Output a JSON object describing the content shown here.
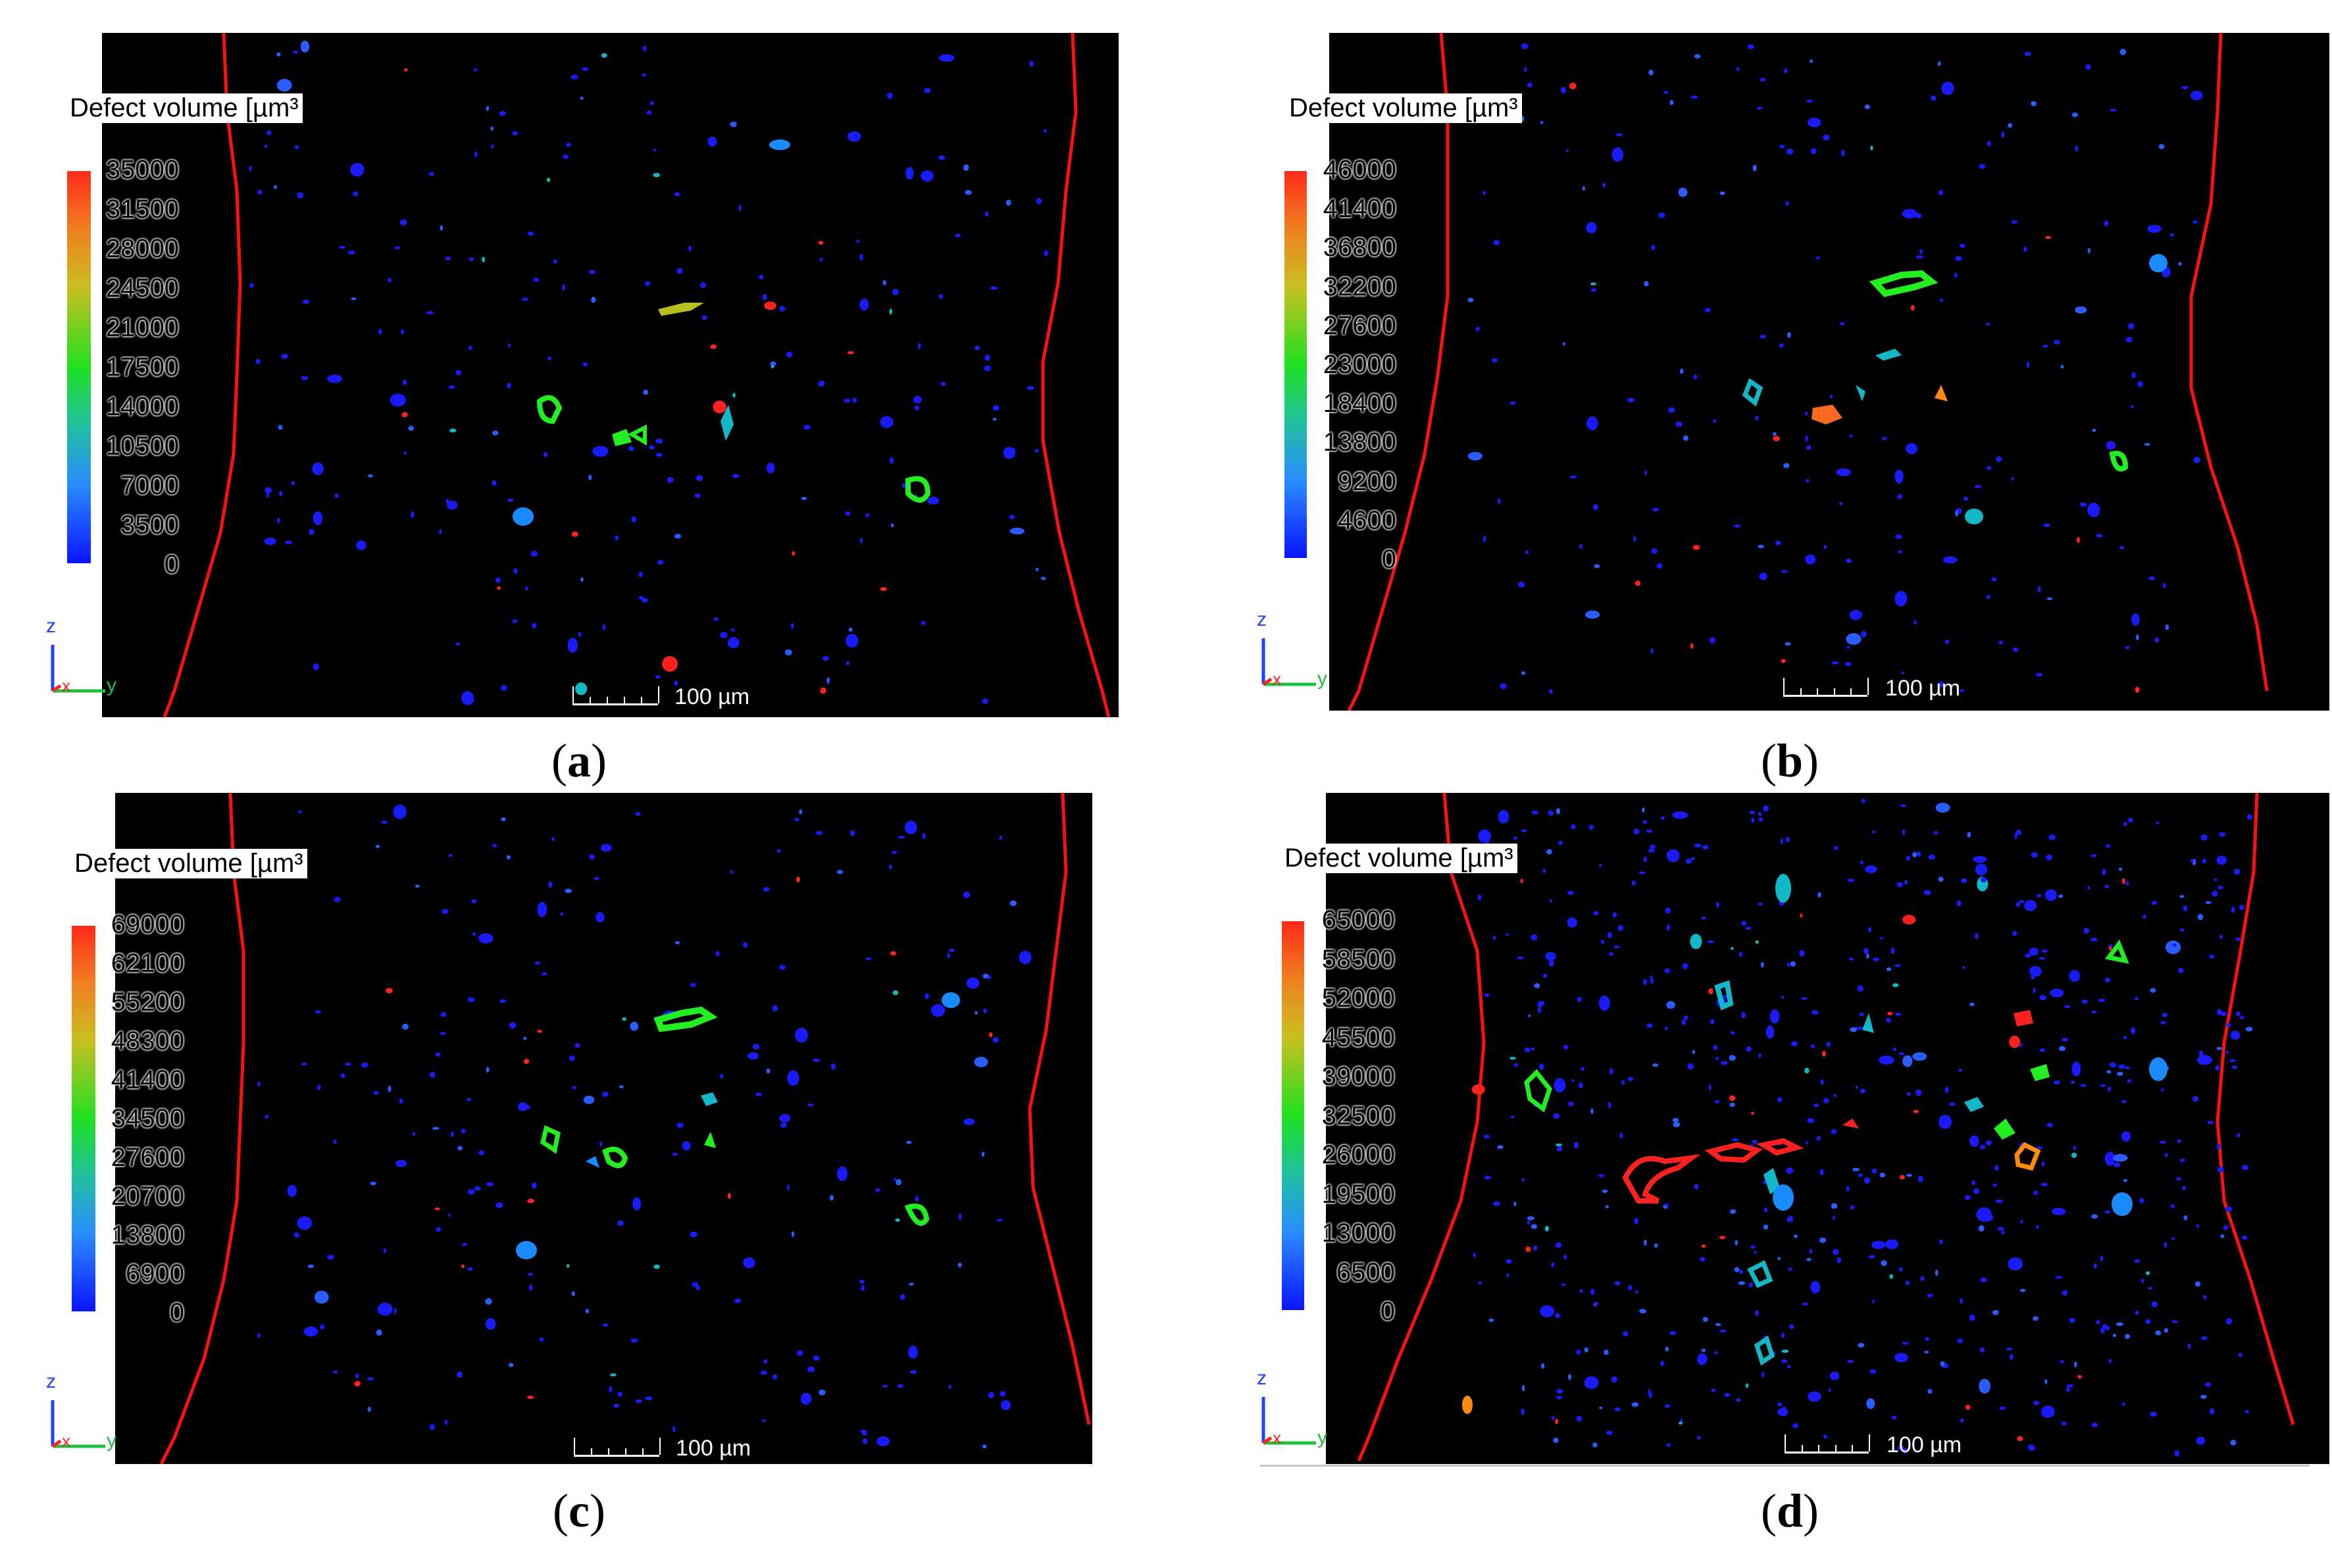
{
  "figure": {
    "legend_title": "Defect volume [µm³",
    "scale_bar_label": "100 µm",
    "axis_labels": {
      "z": "z",
      "y": "y",
      "x": "x"
    },
    "colors": {
      "background": "#000000",
      "boundary": "#ff1010",
      "defect_low": "#1a1aff",
      "defect_mid": "#12b8c8",
      "defect_green": "#22ee22",
      "defect_high": "#ff2020",
      "defect_orange": "#ff8a10",
      "defect_olive": "#b8c020"
    },
    "panels": [
      {
        "id": "a",
        "caption_open": "(",
        "caption_letter": "a",
        "caption_close": ")",
        "colorbar_ticks": [
          "35000",
          "31500",
          "28000",
          "24500",
          "21000",
          "17500",
          "14000",
          "10500",
          "7000",
          "3500",
          "0"
        ]
      },
      {
        "id": "b",
        "caption_open": "(",
        "caption_letter": "b",
        "caption_close": ")",
        "colorbar_ticks": [
          "46000",
          "41400",
          "36800",
          "32200",
          "27600",
          "23000",
          "18400",
          "13800",
          "9200",
          "4600",
          "0"
        ]
      },
      {
        "id": "c",
        "caption_open": "(",
        "caption_letter": "c",
        "caption_close": ")",
        "colorbar_ticks": [
          "69000",
          "62100",
          "55200",
          "48300",
          "41400",
          "34500",
          "27600",
          "20700",
          "13800",
          "6900",
          "0"
        ]
      },
      {
        "id": "d",
        "caption_open": "(",
        "caption_letter": "d",
        "caption_close": ")",
        "colorbar_ticks": [
          "65000",
          "58500",
          "52000",
          "45500",
          "39000",
          "32500",
          "26000",
          "19500",
          "13000",
          "6500",
          "0"
        ]
      }
    ]
  }
}
